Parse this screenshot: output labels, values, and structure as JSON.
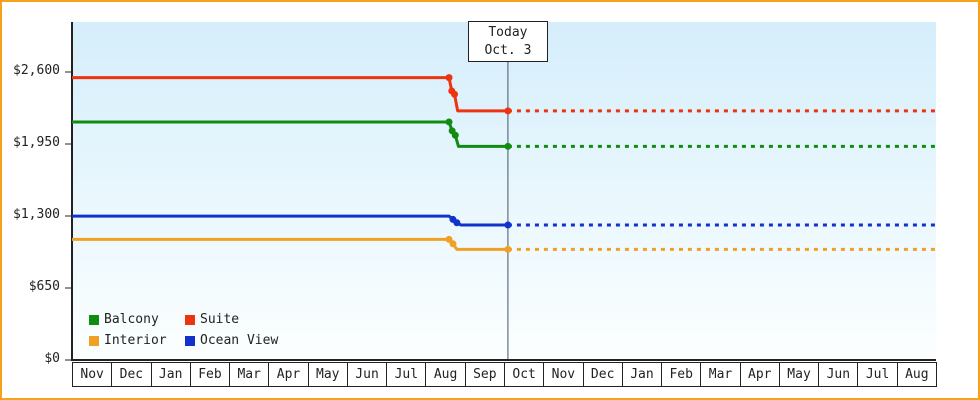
{
  "chart_data": {
    "type": "line",
    "title": "",
    "grid": false,
    "legend_position": "bottom-left-inside",
    "ylim": [
      0,
      3050
    ],
    "x_range_month_units": [
      0,
      22
    ],
    "x_axis": {
      "months": [
        "Nov",
        "Dec",
        "Jan",
        "Feb",
        "Mar",
        "Apr",
        "May",
        "Jun",
        "Jul",
        "Aug",
        "Sep",
        "Oct",
        "Nov",
        "Dec",
        "Jan",
        "Feb",
        "Mar",
        "Apr",
        "May",
        "Jun",
        "Jul",
        "Aug"
      ],
      "today_index": 11
    },
    "y_axis": {
      "ticks": [
        {
          "label": "$0",
          "value": 0
        },
        {
          "label": "$650",
          "value": 650
        },
        {
          "label": "$1,300",
          "value": 1300
        },
        {
          "label": "$1,950",
          "value": 1950
        },
        {
          "label": "$2,600",
          "value": 2600
        }
      ],
      "tick_spacing_value": 650
    },
    "today": {
      "line1": "Today",
      "line2": "Oct. 3",
      "x_month_unit": 11.1
    },
    "series": [
      {
        "name": "Suite",
        "color": "#ee3311",
        "points": [
          [
            0,
            2549
          ],
          [
            9.6,
            2549
          ],
          [
            9.67,
            2429
          ],
          [
            9.74,
            2399
          ],
          [
            9.82,
            2249
          ],
          [
            11.1,
            2249
          ]
        ],
        "markers": [
          [
            9.6,
            2549
          ],
          [
            9.67,
            2429
          ],
          [
            9.74,
            2399
          ],
          [
            11.1,
            2249
          ]
        ],
        "projected_value": 2249
      },
      {
        "name": "Balcony",
        "color": "#118c11",
        "points": [
          [
            0,
            2149
          ],
          [
            9.6,
            2149
          ],
          [
            9.68,
            2069
          ],
          [
            9.76,
            2029
          ],
          [
            9.84,
            1929
          ],
          [
            11.1,
            1929
          ]
        ],
        "markers": [
          [
            9.6,
            2149
          ],
          [
            9.68,
            2069
          ],
          [
            9.76,
            2029
          ],
          [
            11.1,
            1929
          ]
        ],
        "projected_value": 1929
      },
      {
        "name": "Ocean View",
        "color": "#1133cc",
        "points": [
          [
            0,
            1299
          ],
          [
            9.6,
            1299
          ],
          [
            9.7,
            1269
          ],
          [
            9.8,
            1239
          ],
          [
            9.9,
            1219
          ],
          [
            11.1,
            1219
          ]
        ],
        "markers": [
          [
            9.7,
            1269
          ],
          [
            9.8,
            1239
          ],
          [
            11.1,
            1219
          ]
        ],
        "projected_value": 1219
      },
      {
        "name": "Interior",
        "color": "#f0a125",
        "points": [
          [
            0,
            1089
          ],
          [
            9.6,
            1089
          ],
          [
            9.7,
            1049
          ],
          [
            9.8,
            999
          ],
          [
            11.1,
            999
          ]
        ],
        "markers": [
          [
            9.6,
            1089
          ],
          [
            9.7,
            1049
          ],
          [
            11.1,
            999
          ]
        ],
        "projected_value": 999
      }
    ],
    "legend": [
      {
        "label": "Balcony",
        "color": "#118c11"
      },
      {
        "label": "Suite",
        "color": "#ee3311"
      },
      {
        "label": "Interior",
        "color": "#f0a125"
      },
      {
        "label": "Ocean View",
        "color": "#1133cc"
      }
    ],
    "colors": {
      "frame_border": "#f7a21c",
      "plot_bg_top": "#d5eefb",
      "plot_bg_bottom": "#fcffff",
      "axis": "#222222",
      "today_line": "#445566"
    }
  }
}
